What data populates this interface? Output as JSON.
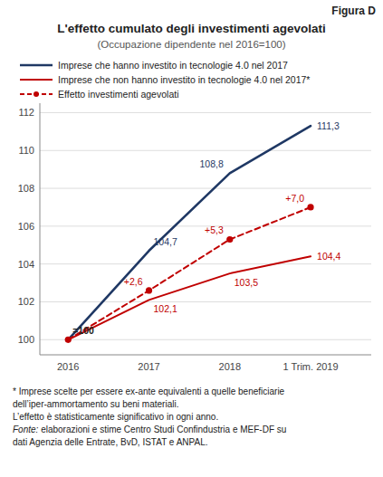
{
  "chart_data": {
    "type": "line",
    "figure_label": "Figura D",
    "title": "L'effetto cumulato degli investimenti agevolati",
    "subtitle": "(Occupazione dipendente nel 2016=100)",
    "categories": [
      "2016",
      "2017",
      "2018",
      "1 Trim. 2019"
    ],
    "series": [
      {
        "name": "Imprese che hanno investito in tecnologie 4.0 nel 2017",
        "color": "#1f3864",
        "line_style": "solid",
        "values": [
          100,
          104.7,
          108.8,
          111.3
        ],
        "value_labels": [
          null,
          "104,7",
          "108,8",
          "111,3"
        ]
      },
      {
        "name": "Imprese che non hanno investito in tecnologie 4.0 nel 2017*",
        "color": "#c00000",
        "line_style": "solid",
        "values": [
          100,
          102.1,
          103.5,
          104.4
        ],
        "value_labels": [
          null,
          "102,1",
          "103,5",
          "104,4"
        ]
      },
      {
        "name": "Effetto investimenti agevolati",
        "color": "#c00000",
        "line_style": "dashed",
        "marker": "circle",
        "values": [
          100,
          102.6,
          105.3,
          107.0
        ]
      }
    ],
    "data_labels": true,
    "annotations": [
      {
        "text": "=100",
        "x": "2016",
        "y": 100
      },
      {
        "text": "+2,6",
        "x": "2017",
        "y": 102.6
      },
      {
        "text": "+5,3",
        "x": "2018",
        "y": 105.3
      },
      {
        "text": "+7,0",
        "x": "1 Trim. 2019",
        "y": 107.0
      }
    ],
    "ylim": [
      99.2,
      112.5
    ],
    "yticks": [
      100,
      102,
      104,
      106,
      108,
      110,
      112
    ],
    "grid": true,
    "legend": "top",
    "footnotes": [
      "* Imprese scelte per essere ex-ante equivalenti a quelle beneficiarie",
      "dell’iper-ammortamento su beni materiali.",
      "L’effetto è statisticamente significativo in ogni anno.",
      "Fonte: elaborazioni e stime Centro Studi Confindustria e MEF-DF su",
      "dati Agenzia delle Entrate, BvD, ISTAT e ANPAL."
    ]
  }
}
